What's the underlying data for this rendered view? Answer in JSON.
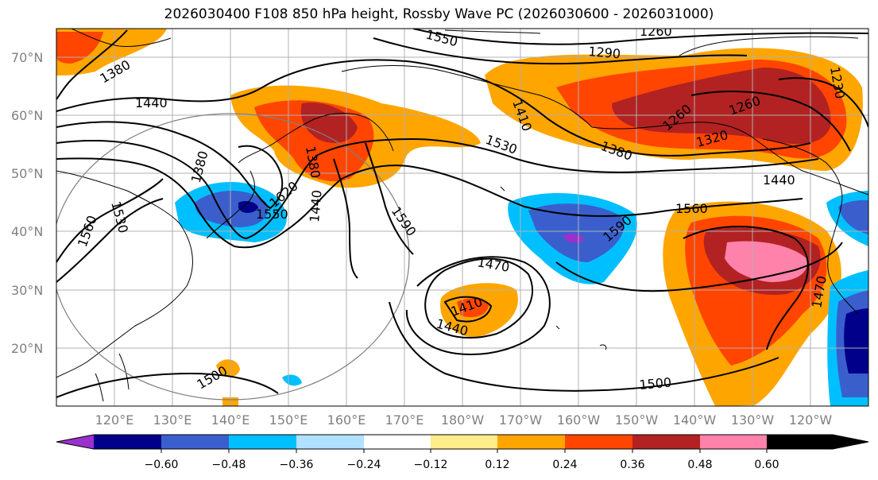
{
  "title": "2026030400 F108 850 hPa height, Rossby Wave PC (2026030600 - 2026031000)",
  "map": {
    "lon_range": [
      110,
      250
    ],
    "lat_range": [
      10,
      75
    ],
    "lat_labels": [
      "20°N",
      "30°N",
      "40°N",
      "50°N",
      "60°N",
      "70°N"
    ],
    "lon_labels": [
      "120°E",
      "130°E",
      "140°E",
      "150°E",
      "160°E",
      "170°E",
      "180°W",
      "170°W",
      "160°W",
      "150°W",
      "140°W",
      "130°W",
      "120°W"
    ],
    "contour_labels": [
      "1260",
      "1290",
      "1320",
      "1380",
      "1410",
      "1440",
      "1470",
      "1500",
      "1530",
      "1550",
      "1560",
      "1590",
      "1230",
      "1620"
    ]
  },
  "colorbar": {
    "ticks": [
      "−0.60",
      "−0.48",
      "−0.36",
      "−0.24",
      "−0.12",
      "0.12",
      "0.24",
      "0.36",
      "0.48",
      "0.60"
    ],
    "colors": [
      "#9932cc",
      "#00008b",
      "#3a5fcd",
      "#00bfff",
      "#b0e2ff",
      "#ffffff",
      "#ffec8b",
      "#ffa500",
      "#ff4500",
      "#b22222",
      "#ff82ab"
    ]
  }
}
